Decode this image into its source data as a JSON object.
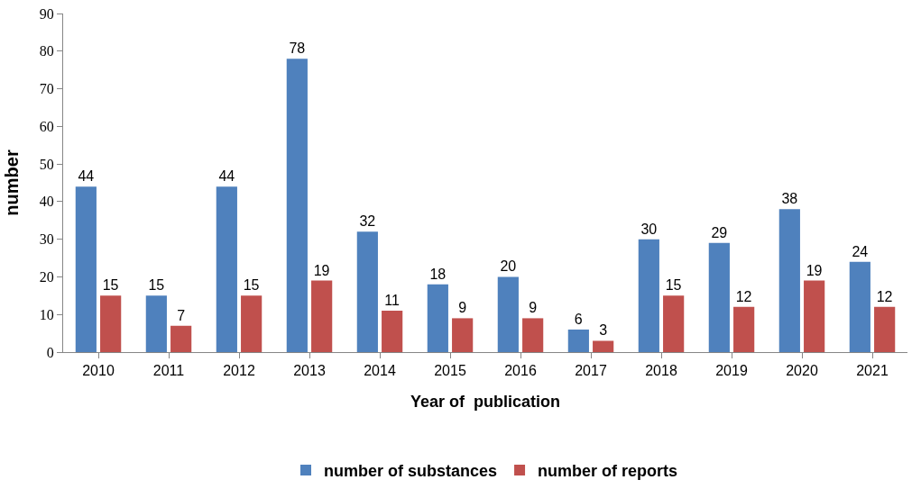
{
  "chart_data": {
    "type": "bar",
    "xlabel": "Year of  publication",
    "ylabel": "number",
    "categories": [
      "2010",
      "2011",
      "2012",
      "2013",
      "2014",
      "2015",
      "2016",
      "2017",
      "2018",
      "2019",
      "2020",
      "2021"
    ],
    "series": [
      {
        "name": "number of substances",
        "color": "#4f81bd",
        "values": [
          44,
          15,
          44,
          78,
          32,
          18,
          20,
          6,
          30,
          29,
          38,
          24
        ]
      },
      {
        "name": "number of reports",
        "color": "#c0504d",
        "values": [
          15,
          7,
          15,
          19,
          11,
          9,
          9,
          3,
          15,
          12,
          19,
          12
        ]
      }
    ],
    "ylim": [
      0,
      90
    ],
    "yticks": [
      0,
      10,
      20,
      30,
      40,
      50,
      60,
      70,
      80,
      90
    ],
    "grid": false,
    "legend": "bottom",
    "data_labels": true
  }
}
